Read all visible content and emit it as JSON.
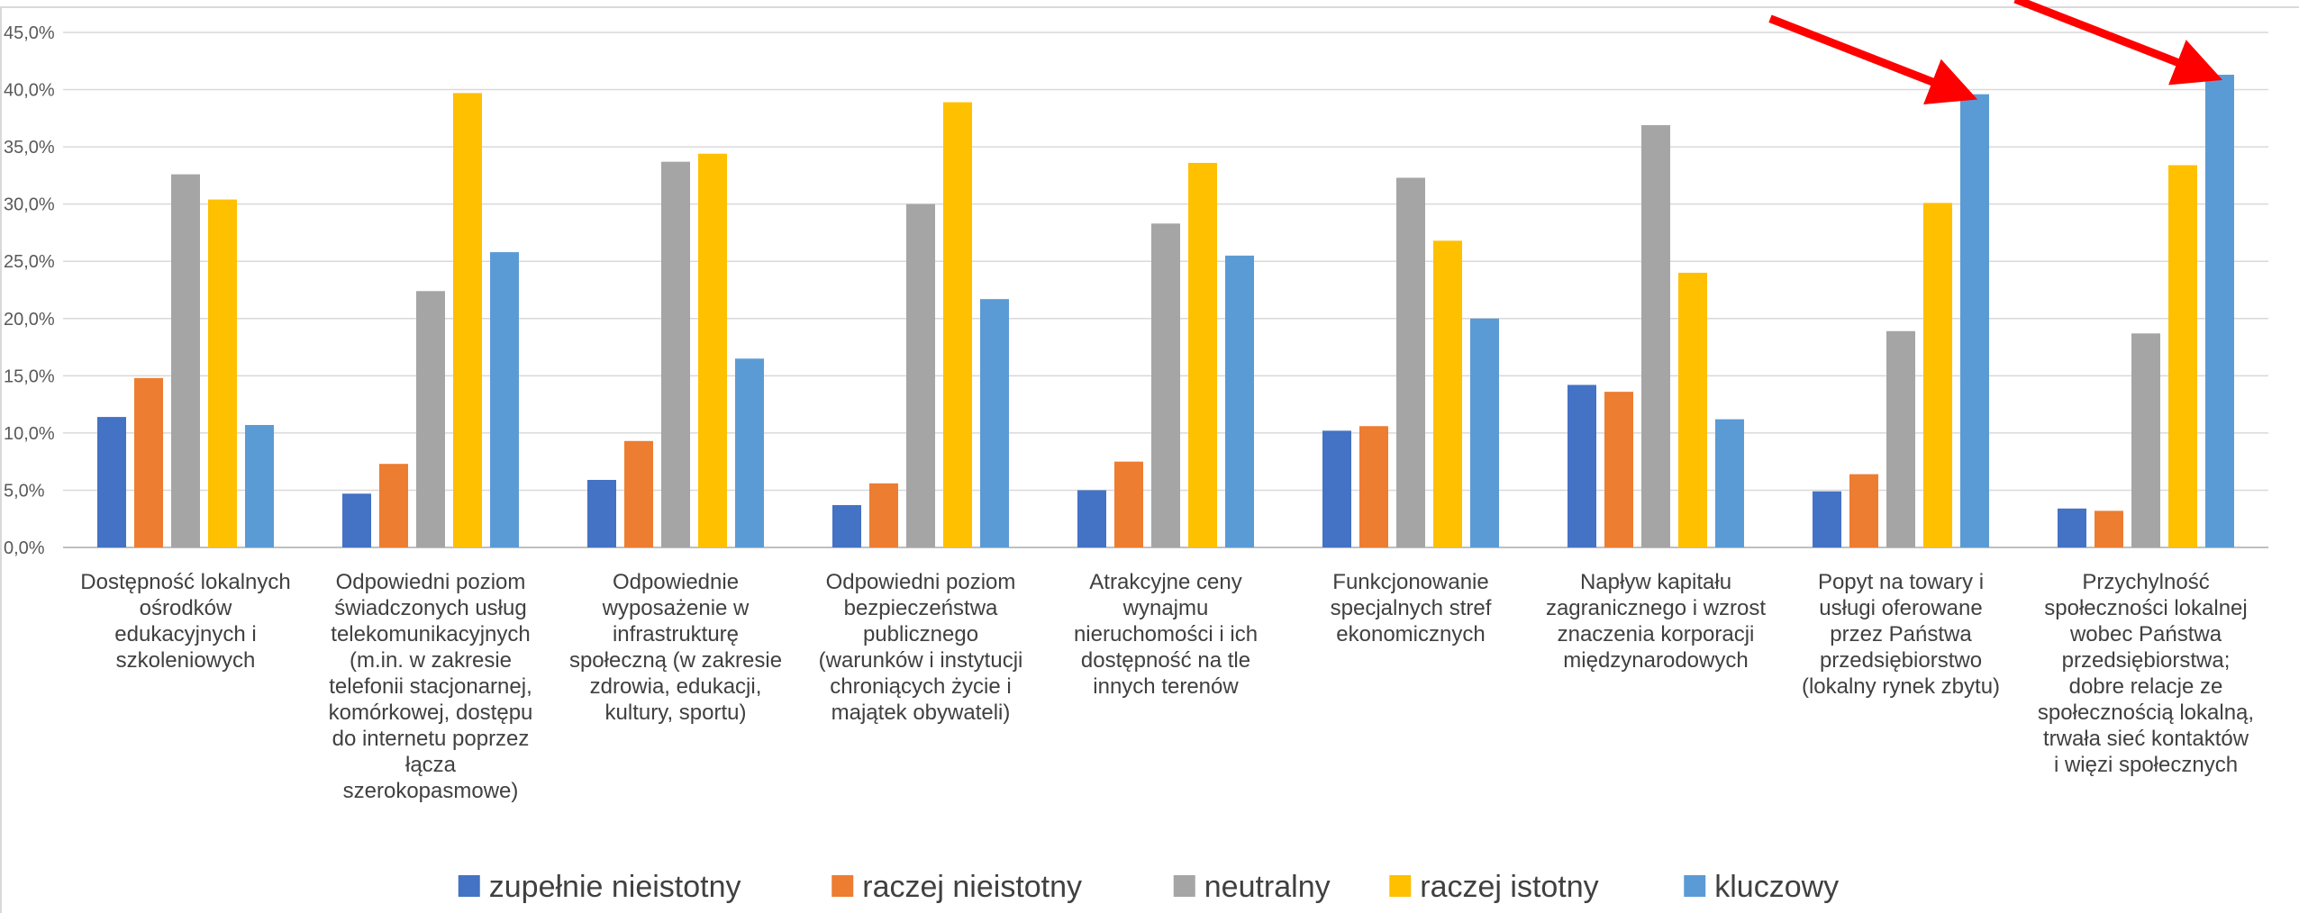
{
  "chart_data": {
    "type": "bar",
    "categories": [
      [
        "Dostępność lokalnych",
        "ośrodków",
        "edukacyjnych i",
        "szkoleniowych"
      ],
      [
        "Odpowiedni poziom",
        "świadczonych usług",
        "telekomunikacyjnych",
        "(m.in. w zakresie",
        "telefonii stacjonarnej,",
        "komórkowej, dostępu",
        "do internetu poprzez",
        "łącza",
        "szerokopasmowe)"
      ],
      [
        "Odpowiednie",
        "wyposażenie w",
        "infrastrukturę",
        "społeczną (w zakresie",
        "zdrowia, edukacji,",
        "kultury, sportu)"
      ],
      [
        "Odpowiedni poziom",
        "bezpieczeństwa",
        "publicznego",
        "(warunków i instytucji",
        "chroniących życie i",
        "majątek obywateli)"
      ],
      [
        "Atrakcyjne ceny",
        "wynajmu",
        "nieruchomości i ich",
        "dostępność na tle",
        "innych terenów"
      ],
      [
        "Funkcjonowanie",
        "specjalnych stref",
        "ekonomicznych"
      ],
      [
        "Napływ kapitału",
        "zagranicznego i wzrost",
        "znaczenia korporacji",
        "międzynarodowych"
      ],
      [
        "Popyt na towary i",
        "usługi oferowane",
        "przez Państwa",
        "przedsiębiorstwo",
        "(lokalny rynek zbytu)"
      ],
      [
        "Przychylność",
        "społeczności lokalnej",
        "wobec Państwa",
        "przedsiębiorstwa;",
        "dobre relacje ze",
        "społecznością lokalną,",
        "trwała sieć kontaktów",
        "i więzi społecznych"
      ]
    ],
    "series": [
      {
        "name": "zupełnie nieistotny",
        "color": "#4472C4",
        "values": [
          11.4,
          4.7,
          5.9,
          3.7,
          5.0,
          10.2,
          14.2,
          4.9,
          3.4
        ]
      },
      {
        "name": "raczej nieistotny",
        "color": "#ED7D31",
        "values": [
          14.8,
          7.3,
          9.3,
          5.6,
          7.5,
          10.6,
          13.6,
          6.4,
          3.2
        ]
      },
      {
        "name": "neutralny",
        "color": "#A5A5A5",
        "values": [
          32.6,
          22.4,
          33.7,
          30.0,
          28.3,
          32.3,
          36.9,
          18.9,
          18.7
        ]
      },
      {
        "name": "raczej istotny",
        "color": "#FFC000",
        "values": [
          30.4,
          39.7,
          34.4,
          38.9,
          33.6,
          26.8,
          24.0,
          30.1,
          33.4
        ]
      },
      {
        "name": "kluczowy",
        "color": "#5B9BD5",
        "values": [
          10.7,
          25.8,
          16.5,
          21.7,
          25.5,
          20.0,
          11.2,
          39.6,
          41.3
        ]
      }
    ],
    "ylim": [
      0,
      45
    ],
    "yticks": [
      "0,0%",
      "5,0%",
      "10,0%",
      "15,0%",
      "20,0%",
      "25,0%",
      "30,0%",
      "35,0%",
      "40,0%",
      "45,0%"
    ],
    "grid": true,
    "legend": "bottom",
    "annotations": [
      {
        "type": "arrow",
        "color": "#FF0000",
        "target_category_index": 7,
        "target_series": "kluczowy"
      },
      {
        "type": "arrow",
        "color": "#FF0000",
        "target_category_index": 8,
        "target_series": "kluczowy"
      }
    ]
  }
}
